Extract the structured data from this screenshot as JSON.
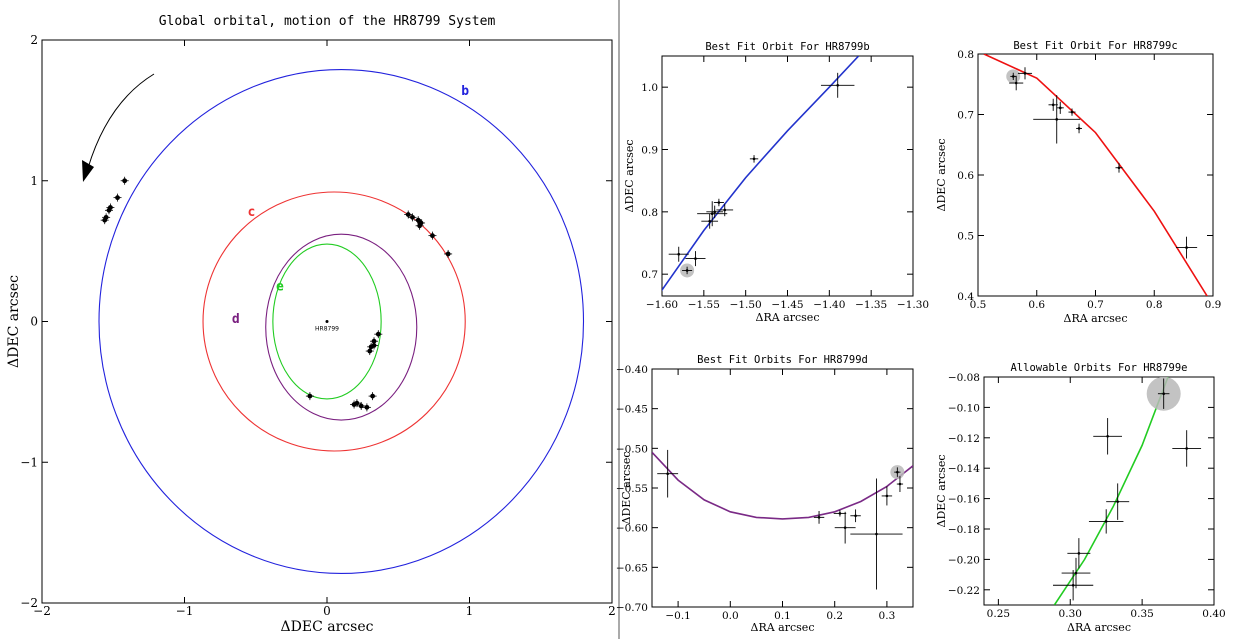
{
  "chart_data": [
    {
      "id": "global",
      "type": "scatter",
      "title": "Global orbital, motion of the HR8799 System",
      "xlabel": "ΔDEC arcsec",
      "ylabel": "ΔDEC arcsec",
      "xlim": [
        -2,
        2
      ],
      "ylim": [
        -2,
        2
      ],
      "xticks": [
        -2,
        -1,
        0,
        1,
        2
      ],
      "yticks": [
        -2,
        -1,
        0,
        1,
        2
      ],
      "tick_labels": [
        "−2",
        "−1",
        "0",
        "1",
        "2"
      ],
      "star": {
        "label": "HR8799",
        "x": 0,
        "y": 0
      },
      "orbits": [
        {
          "name": "b",
          "color": "#2222dd",
          "cx": 0.1,
          "cy": 0.0,
          "rx": 1.7,
          "ry": 1.79,
          "label_pos": [
            0.97,
            1.61
          ]
        },
        {
          "name": "c",
          "color": "#ee3333",
          "cx": 0.05,
          "cy": 0.0,
          "rx": 0.92,
          "ry": 0.92,
          "label_pos": [
            -0.53,
            0.75
          ]
        },
        {
          "name": "d",
          "color": "#7a2080",
          "cx": 0.1,
          "cy": -0.04,
          "rx": 0.53,
          "ry": 0.66,
          "label_pos": [
            -0.64,
            -0.01
          ]
        },
        {
          "name": "e",
          "color": "#22cc22",
          "cx": 0.0,
          "cy": 0.0,
          "rx": 0.38,
          "ry": 0.55,
          "label_pos": [
            -0.33,
            0.22
          ]
        }
      ],
      "points": [
        [
          -1.53,
          0.79
        ],
        [
          -1.55,
          0.74
        ],
        [
          -1.56,
          0.72
        ],
        [
          -1.52,
          0.81
        ],
        [
          -1.47,
          0.88
        ],
        [
          -1.42,
          1.0
        ],
        [
          0.57,
          0.76
        ],
        [
          0.6,
          0.74
        ],
        [
          0.64,
          0.72
        ],
        [
          0.66,
          0.7
        ],
        [
          0.65,
          0.68
        ],
        [
          0.74,
          0.61
        ],
        [
          0.85,
          0.48
        ],
        [
          0.36,
          -0.09
        ],
        [
          0.33,
          -0.14
        ],
        [
          0.31,
          -0.18
        ],
        [
          0.3,
          -0.21
        ],
        [
          0.33,
          -0.17
        ],
        [
          0.21,
          -0.58
        ],
        [
          0.24,
          -0.6
        ],
        [
          0.32,
          -0.53
        ],
        [
          0.28,
          -0.61
        ],
        [
          -0.12,
          -0.53
        ],
        [
          0.19,
          -0.59
        ]
      ]
    },
    {
      "id": "b",
      "type": "scatter",
      "title": "Best Fit Orbit For HR8799b",
      "xlabel": "ΔRA arcsec",
      "ylabel": "ΔDEC arcsec",
      "xlim": [
        -1.6,
        -1.3
      ],
      "ylim": [
        0.665,
        1.05
      ],
      "xticks": [
        -1.6,
        -1.55,
        -1.5,
        -1.45,
        -1.4,
        -1.35,
        -1.3
      ],
      "xtick_labels": [
        "−1.60",
        "−1.55",
        "−1.50",
        "−1.45",
        "−1.40",
        "−1.35",
        "−1.30"
      ],
      "yticks": [
        0.7,
        0.8,
        0.9,
        1.0
      ],
      "ytick_labels": [
        "0.7",
        "0.8",
        "0.9",
        "1.0"
      ],
      "curve_color": "#2233cc",
      "curve": [
        [
          -1.605,
          0.665
        ],
        [
          -1.55,
          0.77
        ],
        [
          -1.5,
          0.855
        ],
        [
          -1.45,
          0.93
        ],
        [
          -1.4,
          1.0
        ],
        [
          -1.365,
          1.05
        ]
      ],
      "points": [
        {
          "x": -1.58,
          "y": 0.732,
          "ex": 0.012,
          "ey": 0.012
        },
        {
          "x": -1.57,
          "y": 0.706,
          "ex": 0.006,
          "ey": 0.006,
          "hl": true
        },
        {
          "x": -1.56,
          "y": 0.725,
          "ex": 0.012,
          "ey": 0.012
        },
        {
          "x": -1.543,
          "y": 0.785,
          "ex": 0.01,
          "ey": 0.012
        },
        {
          "x": -1.54,
          "y": 0.797,
          "ex": 0.018,
          "ey": 0.02
        },
        {
          "x": -1.537,
          "y": 0.8,
          "ex": 0.01,
          "ey": 0.01
        },
        {
          "x": -1.532,
          "y": 0.815,
          "ex": 0.006,
          "ey": 0.006
        },
        {
          "x": -1.525,
          "y": 0.803,
          "ex": 0.01,
          "ey": 0.01
        },
        {
          "x": -1.49,
          "y": 0.885,
          "ex": 0.005,
          "ey": 0.006
        },
        {
          "x": -1.39,
          "y": 1.003,
          "ex": 0.02,
          "ey": 0.02
        }
      ]
    },
    {
      "id": "c",
      "type": "scatter",
      "title": "Best Fit Orbit For HR8799c",
      "xlabel": "ΔRA arcsec",
      "ylabel": "ΔDEC arcsec",
      "xlim": [
        0.5,
        0.9
      ],
      "ylim": [
        0.4,
        0.8
      ],
      "xticks": [
        0.5,
        0.6,
        0.7,
        0.8,
        0.9
      ],
      "xtick_labels": [
        "0.5",
        "0.6",
        "0.7",
        "0.8",
        "0.9"
      ],
      "yticks": [
        0.4,
        0.5,
        0.6,
        0.7,
        0.8
      ],
      "ytick_labels": [
        "0.4",
        "0.5",
        "0.6",
        "0.7",
        "0.8"
      ],
      "curve_color": "#ee1111",
      "curve": [
        [
          0.51,
          0.8
        ],
        [
          0.6,
          0.76
        ],
        [
          0.7,
          0.67
        ],
        [
          0.8,
          0.54
        ],
        [
          0.89,
          0.4
        ]
      ],
      "points": [
        {
          "x": 0.56,
          "y": 0.763,
          "ex": 0.005,
          "ey": 0.006,
          "hl": true
        },
        {
          "x": 0.565,
          "y": 0.752,
          "ex": 0.012,
          "ey": 0.012
        },
        {
          "x": 0.58,
          "y": 0.768,
          "ex": 0.012,
          "ey": 0.01
        },
        {
          "x": 0.628,
          "y": 0.716,
          "ex": 0.008,
          "ey": 0.01
        },
        {
          "x": 0.634,
          "y": 0.692,
          "ex": 0.04,
          "ey": 0.04
        },
        {
          "x": 0.64,
          "y": 0.711,
          "ex": 0.006,
          "ey": 0.01
        },
        {
          "x": 0.66,
          "y": 0.704,
          "ex": 0.006,
          "ey": 0.006
        },
        {
          "x": 0.672,
          "y": 0.677,
          "ex": 0.005,
          "ey": 0.008
        },
        {
          "x": 0.74,
          "y": 0.612,
          "ex": 0.006,
          "ey": 0.008
        },
        {
          "x": 0.855,
          "y": 0.48,
          "ex": 0.018,
          "ey": 0.018
        }
      ]
    },
    {
      "id": "d",
      "type": "scatter",
      "title": "Best Fit Orbits For HR8799d",
      "xlabel": "ΔRA arcsec",
      "ylabel": "ΔDEC arcsec",
      "xlim": [
        -0.15,
        0.35
      ],
      "ylim": [
        -0.7,
        -0.4
      ],
      "xticks": [
        -0.1,
        0.0,
        0.1,
        0.2,
        0.3
      ],
      "xtick_labels": [
        "−0.1",
        "0.0",
        "0.1",
        "0.2",
        "0.3"
      ],
      "yticks": [
        -0.7,
        -0.65,
        -0.6,
        -0.55,
        -0.5,
        -0.45,
        -0.4
      ],
      "ytick_labels": [
        "−0.70",
        "−0.65",
        "−0.60",
        "−0.55",
        "−0.50",
        "−0.45",
        "−0.40"
      ],
      "curve_color": "#7a2a86",
      "curve": [
        [
          -0.15,
          -0.505
        ],
        [
          -0.1,
          -0.54
        ],
        [
          -0.05,
          -0.565
        ],
        [
          0.0,
          -0.58
        ],
        [
          0.05,
          -0.587
        ],
        [
          0.1,
          -0.589
        ],
        [
          0.15,
          -0.587
        ],
        [
          0.2,
          -0.58
        ],
        [
          0.25,
          -0.567
        ],
        [
          0.3,
          -0.548
        ],
        [
          0.35,
          -0.522
        ]
      ],
      "points": [
        {
          "x": -0.12,
          "y": -0.532,
          "ex": 0.02,
          "ey": 0.03
        },
        {
          "x": 0.17,
          "y": -0.587,
          "ex": 0.01,
          "ey": 0.008
        },
        {
          "x": 0.21,
          "y": -0.582,
          "ex": 0.012,
          "ey": 0.004
        },
        {
          "x": 0.22,
          "y": -0.6,
          "ex": 0.02,
          "ey": 0.02
        },
        {
          "x": 0.24,
          "y": -0.585,
          "ex": 0.01,
          "ey": 0.008
        },
        {
          "x": 0.28,
          "y": -0.608,
          "ex": 0.05,
          "ey": 0.07
        },
        {
          "x": 0.3,
          "y": -0.56,
          "ex": 0.01,
          "ey": 0.012
        },
        {
          "x": 0.32,
          "y": -0.53,
          "ex": 0.006,
          "ey": 0.006,
          "hl": true
        },
        {
          "x": 0.325,
          "y": -0.545,
          "ex": 0.006,
          "ey": 0.01
        }
      ]
    },
    {
      "id": "e",
      "type": "scatter",
      "title": "Allowable Orbits For HR8799e",
      "xlabel": "ΔRA arcsec",
      "ylabel": "ΔDEC arcsec",
      "xlim": [
        0.24,
        0.4
      ],
      "ylim": [
        -0.23,
        -0.08
      ],
      "xticks": [
        0.25,
        0.3,
        0.35,
        0.4
      ],
      "xtick_labels": [
        "0.25",
        "0.30",
        "0.35",
        "0.40"
      ],
      "yticks": [
        -0.22,
        -0.2,
        -0.18,
        -0.16,
        -0.14,
        -0.12,
        -0.1,
        -0.08
      ],
      "ytick_labels": [
        "−0.22",
        "−0.20",
        "−0.18",
        "−0.16",
        "−0.14",
        "−0.12",
        "−0.10",
        "−0.08"
      ],
      "curve_color": "#22cc22",
      "curve": [
        [
          0.289,
          -0.23
        ],
        [
          0.31,
          -0.2
        ],
        [
          0.33,
          -0.165
        ],
        [
          0.35,
          -0.125
        ],
        [
          0.368,
          -0.08
        ]
      ],
      "points": [
        {
          "x": 0.365,
          "y": -0.091,
          "ex": 0.004,
          "ey": 0.01,
          "hl": true
        },
        {
          "x": 0.326,
          "y": -0.119,
          "ex": 0.01,
          "ey": 0.012
        },
        {
          "x": 0.381,
          "y": -0.127,
          "ex": 0.01,
          "ey": 0.012
        },
        {
          "x": 0.333,
          "y": -0.162,
          "ex": 0.008,
          "ey": 0.012
        },
        {
          "x": 0.325,
          "y": -0.175,
          "ex": 0.012,
          "ey": 0.008
        },
        {
          "x": 0.306,
          "y": -0.196,
          "ex": 0.008,
          "ey": 0.01
        },
        {
          "x": 0.304,
          "y": -0.209,
          "ex": 0.01,
          "ey": 0.01
        },
        {
          "x": 0.302,
          "y": -0.217,
          "ex": 0.014,
          "ey": 0.01
        }
      ]
    }
  ]
}
